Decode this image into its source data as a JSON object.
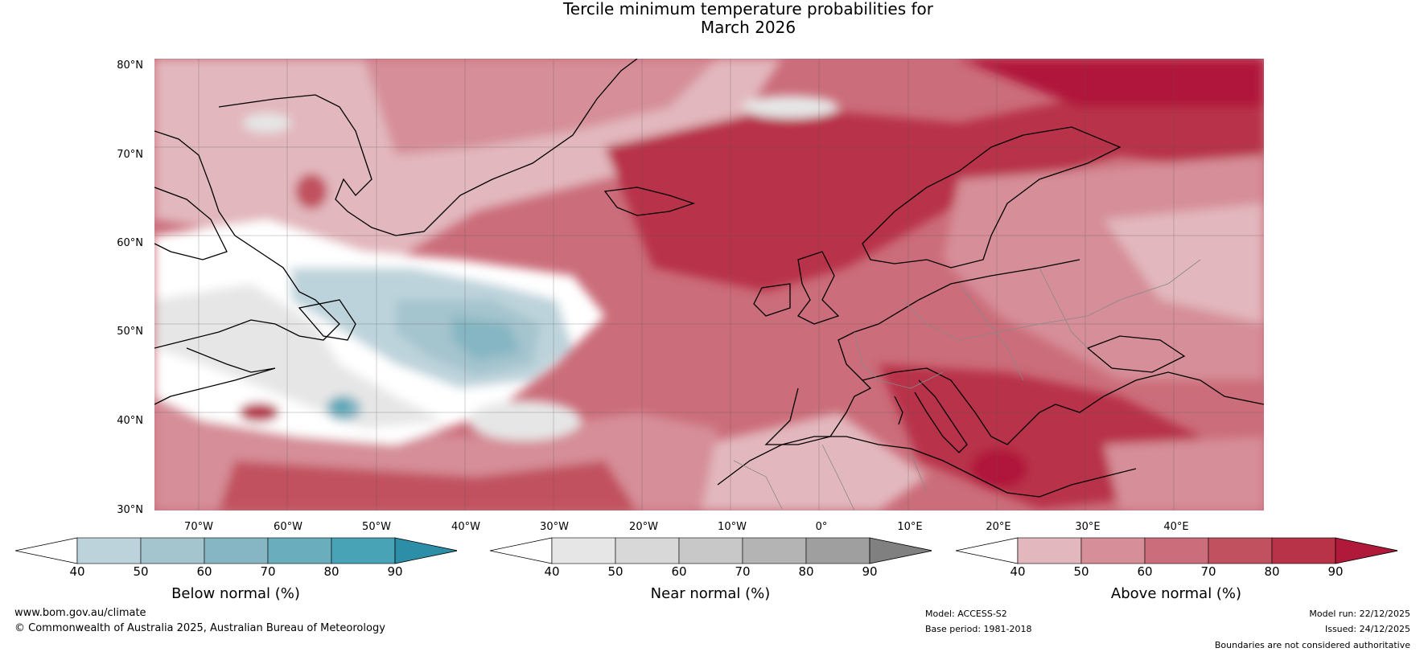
{
  "title": {
    "line1": "Tercile minimum temperature probabilities for",
    "line2": "March 2026"
  },
  "map": {
    "lat_labels": [
      "80°N",
      "70°N",
      "60°N",
      "50°N",
      "40°N",
      "30°N"
    ],
    "lon_labels": [
      "70°W",
      "60°W",
      "50°W",
      "40°W",
      "30°W",
      "20°W",
      "10°W",
      "0°",
      "10°E",
      "20°E",
      "30°E",
      "40°E"
    ]
  },
  "colorbars": [
    {
      "label": "Below normal (%)",
      "ticks": [
        "40",
        "50",
        "60",
        "70",
        "80",
        "90"
      ],
      "colors": [
        "#bdd3db",
        "#a4c4ce",
        "#86b6c3",
        "#6aaebd",
        "#47a3b5",
        "#2d8fa7"
      ]
    },
    {
      "label": "Near normal (%)",
      "ticks": [
        "40",
        "50",
        "60",
        "70",
        "80",
        "90"
      ],
      "colors": [
        "#e6e6e6",
        "#d8d8d8",
        "#c8c8c8",
        "#b4b4b4",
        "#9f9f9f",
        "#808080"
      ]
    },
    {
      "label": "Above normal (%)",
      "ticks": [
        "40",
        "50",
        "60",
        "70",
        "80",
        "90"
      ],
      "colors": [
        "#e2b7bd",
        "#d68e98",
        "#cb6d7a",
        "#c1515f",
        "#b83348",
        "#b0193a"
      ]
    }
  ],
  "footer": {
    "website": "www.bom.gov.au/climate",
    "copyright": "© Commonwealth of Australia 2025, Australian Bureau of Meteorology",
    "model": "Model: ACCESS-S2",
    "base_period": "Base period: 1981-2018",
    "model_run": "Model run: 22/12/2025",
    "issued": "Issued: 24/12/2025",
    "disclaimer": "Boundaries are not considered authoritative"
  }
}
